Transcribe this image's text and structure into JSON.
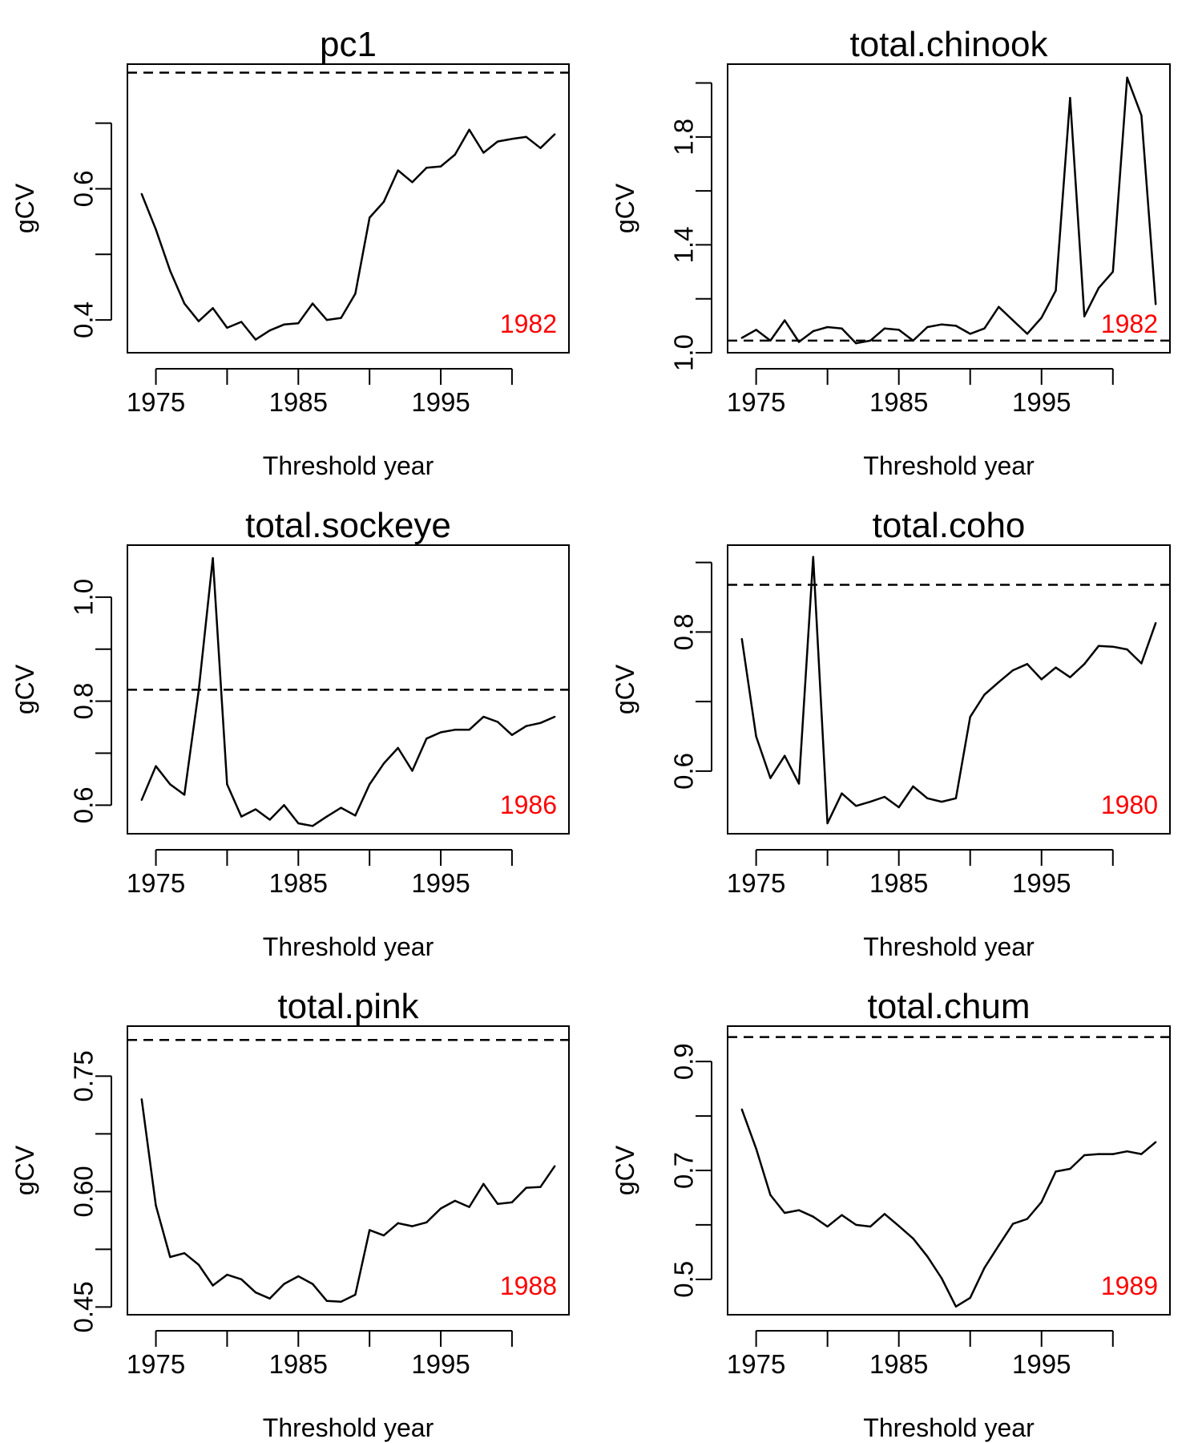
{
  "chart_data": [
    {
      "type": "line",
      "title": "pc1",
      "xlabel": "Threshold year",
      "ylabel": "gCV",
      "xlim": [
        1973,
        2004
      ],
      "ylim": [
        0.35,
        0.79
      ],
      "x_ticks": [
        1975,
        1980,
        1985,
        1990,
        1995,
        2000
      ],
      "x_tick_labels": [
        "1975",
        "",
        "1985",
        "",
        "1995",
        ""
      ],
      "y_ticks": [
        0.4,
        0.5,
        0.6,
        0.7
      ],
      "y_tick_labels": [
        "0.4",
        "",
        "0.6",
        ""
      ],
      "reference_line": 0.777,
      "annotation": "1982",
      "x": [
        1974,
        1975,
        1976,
        1977,
        1978,
        1979,
        1980,
        1981,
        1982,
        1983,
        1984,
        1985,
        1986,
        1987,
        1988,
        1989,
        1990,
        1991,
        1992,
        1993,
        1994,
        1995,
        1996,
        1997,
        1998,
        1999,
        2000,
        2001,
        2002,
        2003
      ],
      "values": [
        0.592,
        0.538,
        0.475,
        0.425,
        0.398,
        0.418,
        0.388,
        0.397,
        0.37,
        0.384,
        0.393,
        0.395,
        0.425,
        0.4,
        0.403,
        0.44,
        0.556,
        0.58,
        0.628,
        0.61,
        0.632,
        0.634,
        0.652,
        0.69,
        0.655,
        0.672,
        0.676,
        0.679,
        0.662,
        0.683
      ],
      "grid": false,
      "legend": "none"
    },
    {
      "type": "line",
      "title": "total.chinook",
      "xlabel": "Threshold year",
      "ylabel": "gCV",
      "xlim": [
        1973,
        2004
      ],
      "ylim": [
        1.0,
        2.07
      ],
      "x_ticks": [
        1975,
        1980,
        1985,
        1990,
        1995,
        2000
      ],
      "x_tick_labels": [
        "1975",
        "",
        "1985",
        "",
        "1995",
        ""
      ],
      "y_ticks": [
        1.0,
        1.2,
        1.4,
        1.6,
        1.8,
        2.0
      ],
      "y_tick_labels": [
        "1.0",
        "",
        "1.4",
        "",
        "1.8",
        ""
      ],
      "reference_line": 1.045,
      "annotation": "1982",
      "x": [
        1974,
        1975,
        1976,
        1977,
        1978,
        1979,
        1980,
        1981,
        1982,
        1983,
        1984,
        1985,
        1986,
        1987,
        1988,
        1989,
        1990,
        1991,
        1992,
        1993,
        1994,
        1995,
        1996,
        1997,
        1998,
        1999,
        2000,
        2001,
        2002,
        2003
      ],
      "values": [
        1.055,
        1.085,
        1.045,
        1.12,
        1.04,
        1.08,
        1.095,
        1.09,
        1.035,
        1.045,
        1.09,
        1.085,
        1.045,
        1.095,
        1.105,
        1.1,
        1.07,
        1.09,
        1.17,
        1.12,
        1.07,
        1.13,
        1.23,
        1.945,
        1.135,
        1.24,
        1.3,
        2.02,
        1.88,
        1.18
      ],
      "grid": false,
      "legend": "none"
    },
    {
      "type": "line",
      "title": "total.sockeye",
      "xlabel": "Threshold year",
      "ylabel": "gCV",
      "xlim": [
        1973,
        2004
      ],
      "ylim": [
        0.545,
        1.1
      ],
      "x_ticks": [
        1975,
        1980,
        1985,
        1990,
        1995,
        2000
      ],
      "x_tick_labels": [
        "1975",
        "",
        "1985",
        "",
        "1995",
        ""
      ],
      "y_ticks": [
        0.6,
        0.7,
        0.8,
        0.9,
        1.0
      ],
      "y_tick_labels": [
        "0.6",
        "",
        "0.8",
        "",
        "1.0"
      ],
      "reference_line": 0.822,
      "annotation": "1986",
      "x": [
        1974,
        1975,
        1976,
        1977,
        1978,
        1979,
        1980,
        1981,
        1982,
        1983,
        1984,
        1985,
        1986,
        1987,
        1988,
        1989,
        1990,
        1991,
        1992,
        1993,
        1994,
        1995,
        1996,
        1997,
        1998,
        1999,
        2000,
        2001,
        2002,
        2003
      ],
      "values": [
        0.61,
        0.675,
        0.64,
        0.62,
        0.82,
        1.075,
        0.64,
        0.578,
        0.592,
        0.572,
        0.6,
        0.565,
        0.56,
        0.578,
        0.595,
        0.58,
        0.64,
        0.68,
        0.71,
        0.666,
        0.728,
        0.74,
        0.745,
        0.745,
        0.77,
        0.76,
        0.735,
        0.752,
        0.758,
        0.77
      ],
      "grid": false,
      "legend": "none"
    },
    {
      "type": "line",
      "title": "total.coho",
      "xlabel": "Threshold year",
      "ylabel": "gCV",
      "xlim": [
        1973,
        2004
      ],
      "ylim": [
        0.51,
        0.925
      ],
      "x_ticks": [
        1975,
        1980,
        1985,
        1990,
        1995,
        2000
      ],
      "x_tick_labels": [
        "1975",
        "",
        "1985",
        "",
        "1995",
        ""
      ],
      "y_ticks": [
        0.6,
        0.7,
        0.8,
        0.9
      ],
      "y_tick_labels": [
        "0.6",
        "",
        "0.8",
        ""
      ],
      "reference_line": 0.868,
      "annotation": "1980",
      "x": [
        1974,
        1975,
        1976,
        1977,
        1978,
        1979,
        1980,
        1981,
        1982,
        1983,
        1984,
        1985,
        1986,
        1987,
        1988,
        1989,
        1990,
        1991,
        1992,
        1993,
        1994,
        1995,
        1996,
        1997,
        1998,
        1999,
        2000,
        2001,
        2002,
        2003
      ],
      "values": [
        0.79,
        0.65,
        0.59,
        0.622,
        0.582,
        0.908,
        0.525,
        0.568,
        0.55,
        0.556,
        0.563,
        0.548,
        0.578,
        0.561,
        0.556,
        0.561,
        0.678,
        0.71,
        0.728,
        0.745,
        0.754,
        0.732,
        0.749,
        0.735,
        0.754,
        0.78,
        0.779,
        0.775,
        0.755,
        0.813
      ],
      "grid": false,
      "legend": "none"
    },
    {
      "type": "line",
      "title": "total.pink",
      "xlabel": "Threshold year",
      "ylabel": "gCV",
      "xlim": [
        1973,
        2004
      ],
      "ylim": [
        0.44,
        0.815
      ],
      "x_ticks": [
        1975,
        1980,
        1985,
        1990,
        1995,
        2000
      ],
      "x_tick_labels": [
        "1975",
        "",
        "1985",
        "",
        "1995",
        ""
      ],
      "y_ticks": [
        0.45,
        0.525,
        0.6,
        0.675,
        0.75
      ],
      "y_tick_labels": [
        "0.45",
        "",
        "0.60",
        "",
        "0.75"
      ],
      "reference_line": 0.797,
      "annotation": "1988",
      "x": [
        1974,
        1975,
        1976,
        1977,
        1978,
        1979,
        1980,
        1981,
        1982,
        1983,
        1984,
        1985,
        1986,
        1987,
        1988,
        1989,
        1990,
        1991,
        1992,
        1993,
        1994,
        1995,
        1996,
        1997,
        1998,
        1999,
        2000,
        2001,
        2002,
        2003
      ],
      "values": [
        0.72,
        0.582,
        0.515,
        0.52,
        0.505,
        0.478,
        0.492,
        0.486,
        0.469,
        0.461,
        0.48,
        0.49,
        0.48,
        0.458,
        0.457,
        0.466,
        0.55,
        0.543,
        0.559,
        0.555,
        0.56,
        0.578,
        0.588,
        0.58,
        0.61,
        0.584,
        0.586,
        0.605,
        0.606,
        0.633
      ],
      "grid": false,
      "legend": "none"
    },
    {
      "type": "line",
      "title": "total.chum",
      "xlabel": "Threshold year",
      "ylabel": "gCV",
      "xlim": [
        1973,
        2004
      ],
      "ylim": [
        0.435,
        0.965
      ],
      "x_ticks": [
        1975,
        1980,
        1985,
        1990,
        1995,
        2000
      ],
      "x_tick_labels": [
        "1975",
        "",
        "1985",
        "",
        "1995",
        ""
      ],
      "y_ticks": [
        0.5,
        0.6,
        0.7,
        0.8,
        0.9
      ],
      "y_tick_labels": [
        "0.5",
        "",
        "0.7",
        "",
        "0.9"
      ],
      "reference_line": 0.945,
      "annotation": "1989",
      "x": [
        1974,
        1975,
        1976,
        1977,
        1978,
        1979,
        1980,
        1981,
        1982,
        1983,
        1984,
        1985,
        1986,
        1987,
        1988,
        1989,
        1990,
        1991,
        1992,
        1993,
        1994,
        1995,
        1996,
        1997,
        1998,
        1999,
        2000,
        2001,
        2002,
        2003
      ],
      "values": [
        0.812,
        0.74,
        0.655,
        0.622,
        0.627,
        0.615,
        0.597,
        0.618,
        0.6,
        0.597,
        0.62,
        0.598,
        0.575,
        0.542,
        0.502,
        0.45,
        0.466,
        0.521,
        0.562,
        0.602,
        0.611,
        0.642,
        0.698,
        0.703,
        0.728,
        0.73,
        0.73,
        0.735,
        0.73,
        0.752
      ],
      "grid": false,
      "legend": "none"
    }
  ]
}
